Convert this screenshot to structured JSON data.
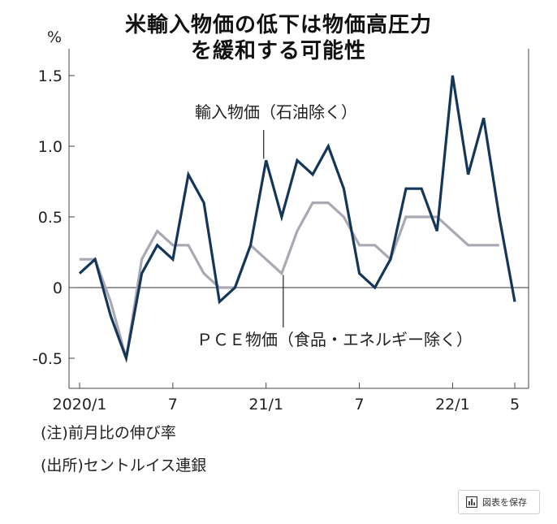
{
  "title_line1": "米輸入物価の低下は物価高圧力",
  "title_line2": "を緩和する可能性",
  "notes": {
    "note1": "(注)前月比の伸び率",
    "note2": "(出所)セントルイス連銀"
  },
  "save_button": {
    "label": "図表を保存",
    "icon": "chart-bar-icon"
  },
  "chart_data": {
    "type": "line",
    "unit": "%",
    "ylim": [
      -0.55,
      1.62
    ],
    "yticks": [
      {
        "value": 1.5,
        "label": "1.5"
      },
      {
        "value": 1.0,
        "label": "1.0"
      },
      {
        "value": 0.5,
        "label": "0.5"
      },
      {
        "value": 0,
        "label": "0"
      },
      {
        "value": -0.5,
        "label": "-0.5"
      }
    ],
    "xticks": [
      {
        "index": 0,
        "label": "2020/1"
      },
      {
        "index": 6,
        "label": "7"
      },
      {
        "index": 12,
        "label": "21/1"
      },
      {
        "index": 18,
        "label": "7"
      },
      {
        "index": 24,
        "label": "22/1"
      },
      {
        "index": 28,
        "label": "5"
      }
    ],
    "x": [
      "2020/1",
      "2020/2",
      "2020/3",
      "2020/4",
      "2020/5",
      "2020/6",
      "2020/7",
      "2020/8",
      "2020/9",
      "2020/10",
      "2020/11",
      "2020/12",
      "2021/1",
      "2021/2",
      "2021/3",
      "2021/4",
      "2021/5",
      "2021/6",
      "2021/7",
      "2021/8",
      "2021/9",
      "2021/10",
      "2021/11",
      "2021/12",
      "2022/1",
      "2022/2",
      "2022/3",
      "2022/4",
      "2022/5"
    ],
    "zero_line": true,
    "series": [
      {
        "name": "輸入物価（石油除く）",
        "color": "#143658",
        "values": [
          0.1,
          0.2,
          -0.2,
          -0.5,
          0.1,
          0.3,
          0.2,
          0.8,
          0.6,
          -0.1,
          0.0,
          0.3,
          0.9,
          0.5,
          0.9,
          0.8,
          1.0,
          0.7,
          0.1,
          0.0,
          0.2,
          0.7,
          0.7,
          0.4,
          1.5,
          0.8,
          1.2,
          0.5,
          -0.1
        ]
      },
      {
        "name": "ＰＣＥ物価（食品・エネルギー除く）",
        "color": "#a9a9b4",
        "values": [
          0.2,
          0.2,
          -0.1,
          -0.5,
          0.2,
          0.4,
          0.3,
          0.3,
          0.1,
          0.0,
          0.0,
          0.3,
          0.2,
          0.1,
          0.4,
          0.6,
          0.6,
          0.5,
          0.3,
          0.3,
          0.2,
          0.5,
          0.5,
          0.5,
          0.4,
          0.3,
          0.3,
          0.3,
          null
        ]
      }
    ],
    "annotations": [
      {
        "text": "輸入物価（石油除く）",
        "series": 0,
        "index": 12
      },
      {
        "text": "ＰＣＥ物価（食品・エネルギー除く）",
        "series": 1,
        "index": 13
      }
    ]
  }
}
